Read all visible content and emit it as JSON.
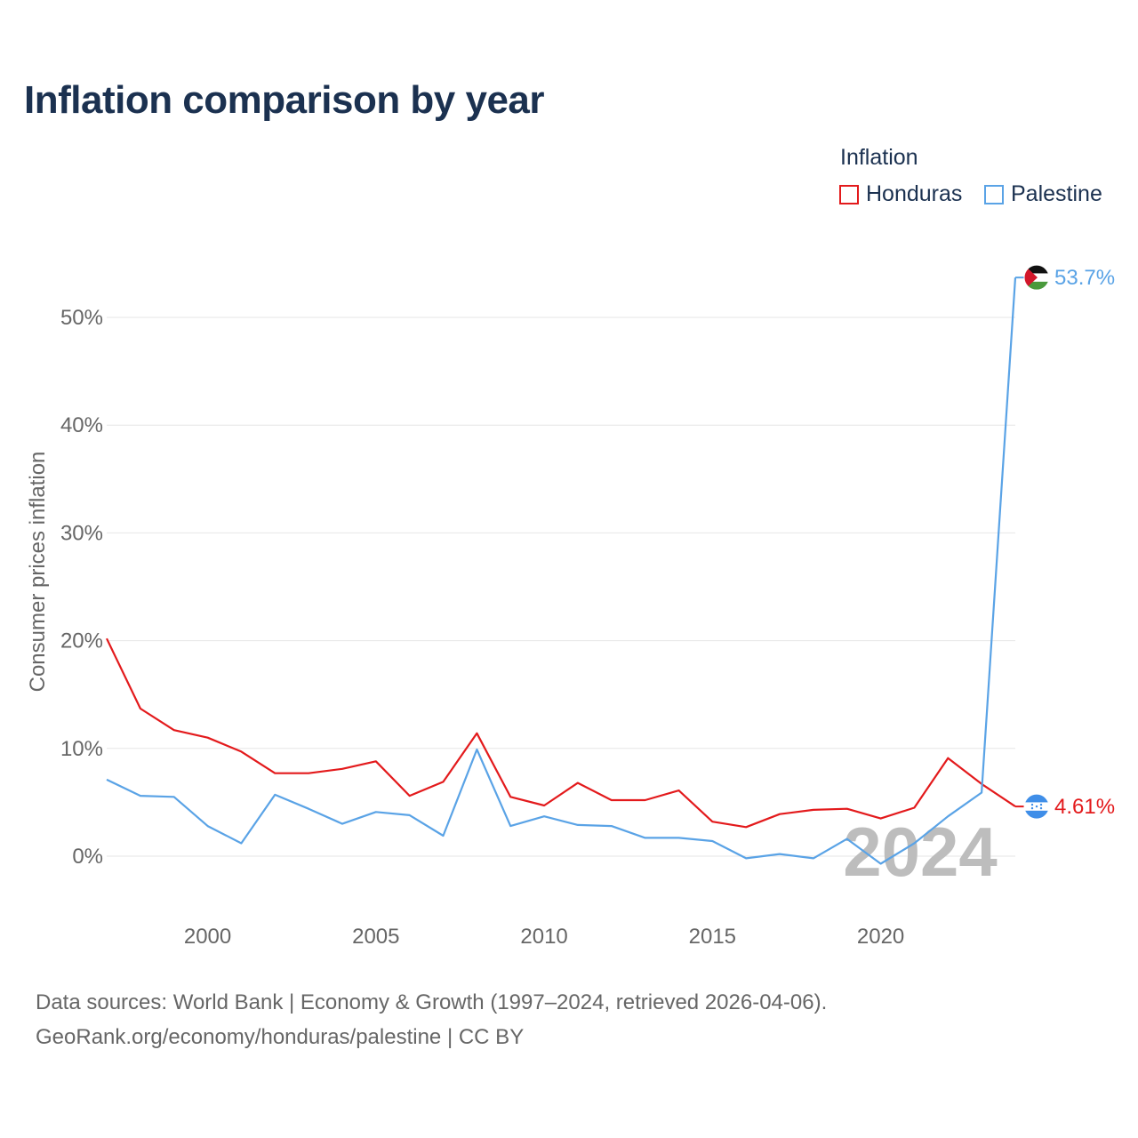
{
  "title": "Inflation comparison by year",
  "legend": {
    "title": "Inflation",
    "items": [
      {
        "name": "Honduras",
        "color": "#e31a1c"
      },
      {
        "name": "Palestine",
        "color": "#5aa3e6"
      }
    ]
  },
  "watermark_year": "2024",
  "source": {
    "line1": "Data sources: World Bank | Economy & Growth (1997–2024, retrieved 2026-04-06).",
    "line2": "GeoRank.org/economy/honduras/palestine | CC BY"
  },
  "chart_data": {
    "type": "line",
    "title": "Inflation comparison by year",
    "xlabel": "",
    "ylabel": "Consumer prices inflation",
    "xlim": [
      1997,
      2024
    ],
    "ylim": [
      -5,
      55
    ],
    "x_ticks": [
      2000,
      2005,
      2010,
      2015,
      2020
    ],
    "y_ticks": [
      0,
      10,
      20,
      30,
      40,
      50
    ],
    "y_tick_labels": [
      "0%",
      "10%",
      "20%",
      "30%",
      "40%",
      "50%"
    ],
    "grid": true,
    "legend_position": "top-right",
    "x": [
      1997,
      1998,
      1999,
      2000,
      2001,
      2002,
      2003,
      2004,
      2005,
      2006,
      2007,
      2008,
      2009,
      2010,
      2011,
      2012,
      2013,
      2014,
      2015,
      2016,
      2017,
      2018,
      2019,
      2020,
      2021,
      2022,
      2023,
      2024
    ],
    "series": [
      {
        "name": "Honduras",
        "color": "#e31a1c",
        "values": [
          20.2,
          13.7,
          11.7,
          11.0,
          9.7,
          7.7,
          7.7,
          8.1,
          8.8,
          5.6,
          6.9,
          11.4,
          5.5,
          4.7,
          6.8,
          5.2,
          5.2,
          6.1,
          3.2,
          2.7,
          3.9,
          4.3,
          4.4,
          3.5,
          4.5,
          9.1,
          6.7,
          4.61
        ],
        "end_label": "4.61%"
      },
      {
        "name": "Palestine",
        "color": "#5aa3e6",
        "values": [
          7.1,
          5.6,
          5.5,
          2.8,
          1.2,
          5.7,
          4.4,
          3.0,
          4.1,
          3.8,
          1.9,
          9.9,
          2.8,
          3.7,
          2.9,
          2.8,
          1.7,
          1.7,
          1.4,
          -0.2,
          0.2,
          -0.2,
          1.6,
          -0.7,
          1.2,
          3.7,
          5.9,
          53.7
        ],
        "end_label": "53.7%"
      }
    ]
  }
}
